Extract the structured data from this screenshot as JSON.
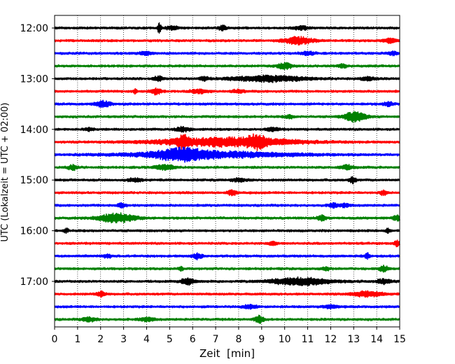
{
  "chart_data": {
    "type": "helicorder",
    "xlabel": "Zeit  [min]",
    "ylabel": "UTC (Lokalzeit = UTC + 02:00)",
    "xlim": [
      0,
      15
    ],
    "xticks": [
      0,
      1,
      2,
      3,
      4,
      5,
      6,
      7,
      8,
      9,
      10,
      11,
      12,
      13,
      14,
      15
    ],
    "x_grid": "dotted vertical lines at every minute",
    "trace_interval_min": 15,
    "trace_count": 24,
    "y_tick_labels": [
      "12:00",
      "13:00",
      "14:00",
      "15:00",
      "16:00",
      "17:00"
    ],
    "series_colors": [
      "#000000",
      "#ff0000",
      "#0000ff",
      "#008000"
    ],
    "color_cycle": "black, red, blue, green repeating per 15-minute line",
    "traces": [
      {
        "start": "12:00",
        "color": "#000000",
        "events": [
          {
            "x": 4.55,
            "amp": 1.0,
            "dur": 0.08
          },
          {
            "x": 7.3,
            "amp": 0.45,
            "dur": 0.15
          },
          {
            "x": 5.1,
            "amp": 0.3,
            "dur": 0.3
          },
          {
            "x": 10.7,
            "amp": 0.35,
            "dur": 0.3
          }
        ]
      },
      {
        "start": "12:15",
        "color": "#ff0000",
        "events": [
          {
            "x": 10.6,
            "amp": 0.7,
            "dur": 0.6
          },
          {
            "x": 14.6,
            "amp": 0.4,
            "dur": 0.3
          }
        ]
      },
      {
        "start": "12:30",
        "color": "#0000ff",
        "events": [
          {
            "x": 4.0,
            "amp": 0.3,
            "dur": 0.3
          },
          {
            "x": 11.0,
            "amp": 0.3,
            "dur": 0.3
          },
          {
            "x": 14.7,
            "amp": 0.35,
            "dur": 0.2
          }
        ]
      },
      {
        "start": "12:45",
        "color": "#008000",
        "events": [
          {
            "x": 10.0,
            "amp": 0.6,
            "dur": 0.3
          },
          {
            "x": 12.5,
            "amp": 0.3,
            "dur": 0.2
          }
        ]
      },
      {
        "start": "13:00",
        "color": "#000000",
        "events": [
          {
            "x": 4.5,
            "amp": 0.45,
            "dur": 0.2
          },
          {
            "x": 6.5,
            "amp": 0.35,
            "dur": 0.2
          },
          {
            "x": 9.3,
            "amp": 0.55,
            "dur": 1.6
          },
          {
            "x": 13.6,
            "amp": 0.35,
            "dur": 0.3
          }
        ]
      },
      {
        "start": "13:15",
        "color": "#ff0000",
        "events": [
          {
            "x": 3.5,
            "amp": 0.4,
            "dur": 0.1
          },
          {
            "x": 4.4,
            "amp": 0.6,
            "dur": 0.25
          },
          {
            "x": 6.3,
            "amp": 0.35,
            "dur": 0.4
          },
          {
            "x": 8.0,
            "amp": 0.3,
            "dur": 0.3
          }
        ]
      },
      {
        "start": "13:30",
        "color": "#0000ff",
        "events": [
          {
            "x": 2.1,
            "amp": 0.6,
            "dur": 0.3
          },
          {
            "x": 14.5,
            "amp": 0.4,
            "dur": 0.2
          }
        ]
      },
      {
        "start": "13:45",
        "color": "#008000",
        "events": [
          {
            "x": 13.05,
            "amp": 1.0,
            "dur": 0.45
          },
          {
            "x": 10.2,
            "amp": 0.3,
            "dur": 0.2
          }
        ]
      },
      {
        "start": "14:00",
        "color": "#000000",
        "events": [
          {
            "x": 5.6,
            "amp": 0.45,
            "dur": 0.3
          },
          {
            "x": 1.5,
            "amp": 0.3,
            "dur": 0.2
          },
          {
            "x": 9.5,
            "amp": 0.3,
            "dur": 0.3
          }
        ]
      },
      {
        "start": "14:15",
        "color": "#ff0000",
        "events": [
          {
            "x": 5.6,
            "amp": 1.0,
            "dur": 0.25
          },
          {
            "x": 7.5,
            "amp": 0.85,
            "dur": 3.0
          },
          {
            "x": 8.8,
            "amp": 0.9,
            "dur": 0.4
          }
        ]
      },
      {
        "start": "14:30",
        "color": "#0000ff",
        "events": [
          {
            "x": 5.5,
            "amp": 0.9,
            "dur": 1.0
          },
          {
            "x": 6.8,
            "amp": 0.6,
            "dur": 3.5
          }
        ]
      },
      {
        "start": "14:45",
        "color": "#008000",
        "events": [
          {
            "x": 0.8,
            "amp": 0.5,
            "dur": 0.2
          },
          {
            "x": 4.8,
            "amp": 0.5,
            "dur": 0.4
          },
          {
            "x": 12.7,
            "amp": 0.4,
            "dur": 0.3
          }
        ]
      },
      {
        "start": "15:00",
        "color": "#000000",
        "events": [
          {
            "x": 12.95,
            "amp": 0.6,
            "dur": 0.15
          },
          {
            "x": 3.5,
            "amp": 0.3,
            "dur": 0.3
          },
          {
            "x": 8.0,
            "amp": 0.3,
            "dur": 0.3
          }
        ]
      },
      {
        "start": "15:15",
        "color": "#ff0000",
        "events": [
          {
            "x": 7.7,
            "amp": 0.5,
            "dur": 0.2
          },
          {
            "x": 14.3,
            "amp": 0.45,
            "dur": 0.15
          }
        ]
      },
      {
        "start": "15:30",
        "color": "#0000ff",
        "events": [
          {
            "x": 2.9,
            "amp": 0.4,
            "dur": 0.2
          },
          {
            "x": 12.1,
            "amp": 0.4,
            "dur": 0.2
          },
          {
            "x": 12.6,
            "amp": 0.35,
            "dur": 0.2
          }
        ]
      },
      {
        "start": "15:45",
        "color": "#008000",
        "events": [
          {
            "x": 2.7,
            "amp": 0.9,
            "dur": 0.8
          },
          {
            "x": 11.6,
            "amp": 0.5,
            "dur": 0.2
          },
          {
            "x": 14.9,
            "amp": 0.5,
            "dur": 0.2
          }
        ]
      },
      {
        "start": "16:00",
        "color": "#000000",
        "events": [
          {
            "x": 0.5,
            "amp": 0.4,
            "dur": 0.1
          },
          {
            "x": 14.5,
            "amp": 0.4,
            "dur": 0.1
          }
        ]
      },
      {
        "start": "16:15",
        "color": "#ff0000",
        "events": [
          {
            "x": 14.9,
            "amp": 0.55,
            "dur": 0.15
          },
          {
            "x": 9.5,
            "amp": 0.3,
            "dur": 0.2
          }
        ]
      },
      {
        "start": "16:30",
        "color": "#0000ff",
        "events": [
          {
            "x": 6.2,
            "amp": 0.55,
            "dur": 0.2
          },
          {
            "x": 13.6,
            "amp": 0.55,
            "dur": 0.1
          },
          {
            "x": 2.3,
            "amp": 0.3,
            "dur": 0.2
          }
        ]
      },
      {
        "start": "16:45",
        "color": "#008000",
        "events": [
          {
            "x": 14.3,
            "amp": 0.6,
            "dur": 0.2
          },
          {
            "x": 5.5,
            "amp": 0.35,
            "dur": 0.1
          },
          {
            "x": 11.8,
            "amp": 0.3,
            "dur": 0.2
          }
        ]
      },
      {
        "start": "17:00",
        "color": "#000000",
        "events": [
          {
            "x": 5.8,
            "amp": 0.6,
            "dur": 0.3
          },
          {
            "x": 10.7,
            "amp": 0.7,
            "dur": 1.3
          },
          {
            "x": 14.3,
            "amp": 0.45,
            "dur": 0.3
          }
        ]
      },
      {
        "start": "17:15",
        "color": "#ff0000",
        "events": [
          {
            "x": 2.0,
            "amp": 0.5,
            "dur": 0.2
          },
          {
            "x": 13.6,
            "amp": 0.55,
            "dur": 0.6
          }
        ]
      },
      {
        "start": "17:30",
        "color": "#0000ff",
        "events": [
          {
            "x": 8.5,
            "amp": 0.35,
            "dur": 0.3
          },
          {
            "x": 12.0,
            "amp": 0.3,
            "dur": 0.3
          }
        ]
      },
      {
        "start": "17:45",
        "color": "#008000",
        "events": [
          {
            "x": 8.9,
            "amp": 0.7,
            "dur": 0.2
          },
          {
            "x": 1.5,
            "amp": 0.4,
            "dur": 0.3
          },
          {
            "x": 4.0,
            "amp": 0.35,
            "dur": 0.3
          }
        ]
      }
    ]
  }
}
